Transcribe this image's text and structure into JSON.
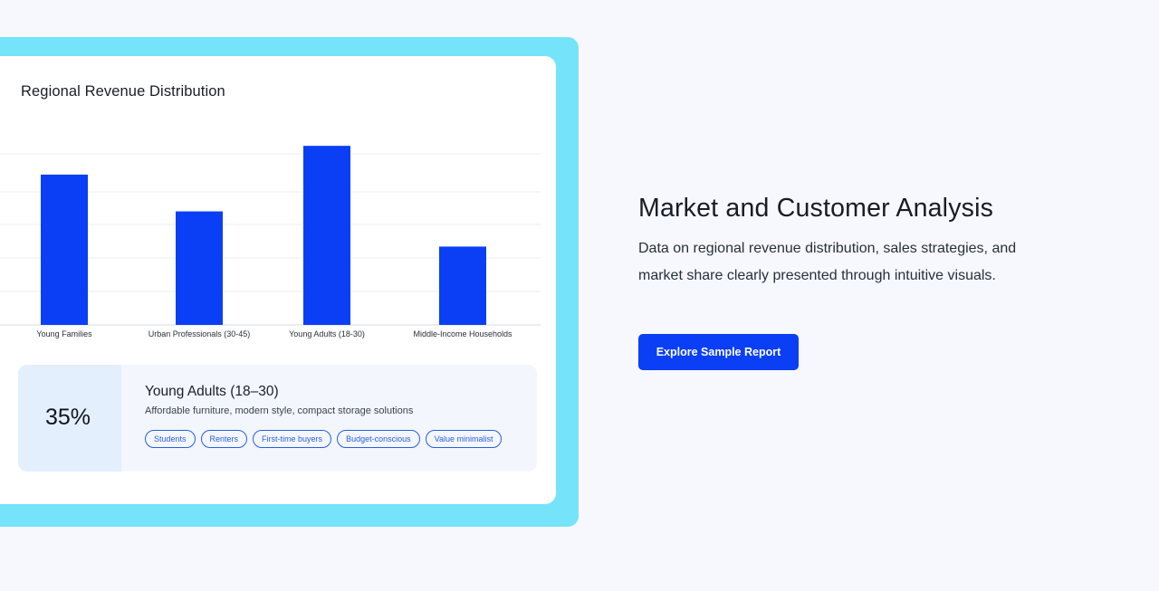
{
  "chart_card": {
    "title": "Regional Revenue Distribution"
  },
  "chart_data": {
    "type": "bar",
    "categories": [
      "Young Families",
      "Urban Professionals (30-45)",
      "Young Adults (18-30)",
      "Middle-Income Households"
    ],
    "values": [
      47,
      35.5,
      56,
      24.5
    ],
    "title": "Regional Revenue Distribution",
    "xlabel": "",
    "ylabel": "",
    "ylim": [
      0,
      60
    ],
    "grid": true,
    "colors": {
      "bar": "#0a3ff5",
      "grid": "#e9ecf1",
      "axis": "#d6dae2"
    }
  },
  "segment": {
    "share": "35%",
    "title": "Young Adults (18–30)",
    "description": "Affordable furniture, modern style, compact storage solutions",
    "tags": [
      "Students",
      "Renters",
      "First-time buyers",
      "Budget-conscious",
      "Value minimalist"
    ]
  },
  "section": {
    "heading": "Market and Customer Analysis",
    "body": "Data on regional revenue distribution, sales strategies, and market share clearly presented through intuitive visuals.",
    "cta_label": "Explore Sample Report"
  },
  "colors": {
    "background": "#f6f8fd",
    "frame": "#75e3fa",
    "accent": "#0a3ff5"
  }
}
